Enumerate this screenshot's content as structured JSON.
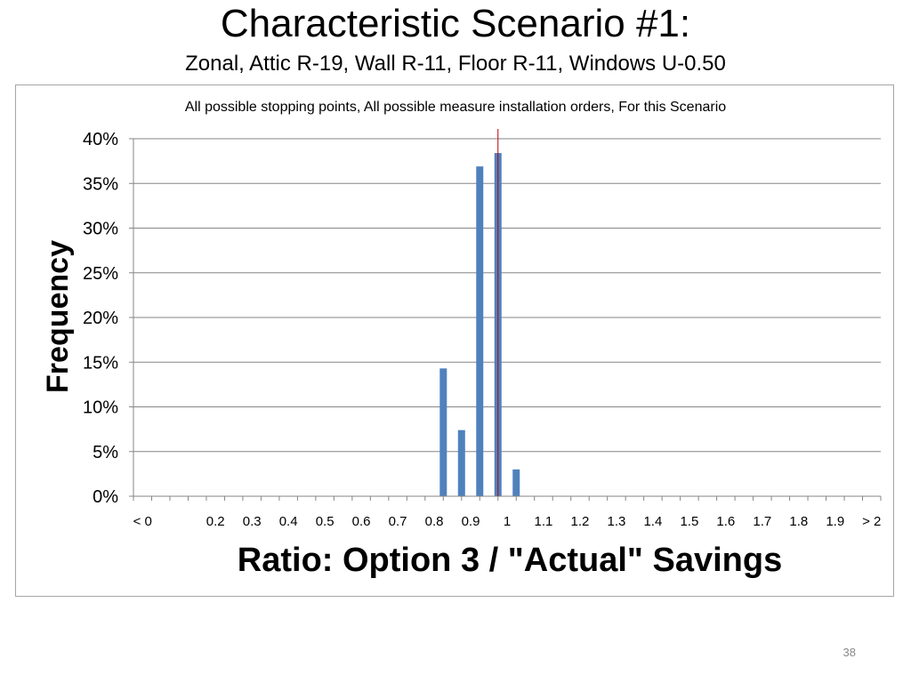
{
  "slide": {
    "title": "Characteristic Scenario #1:",
    "subtitle": "Zonal, Attic R-19, Wall R-11, Floor R-11, Windows U-0.50",
    "page_number": "38"
  },
  "chart_data": {
    "type": "bar",
    "title": "All possible stopping points, All possible measure installation orders, For this Scenario",
    "xlabel": "Ratio: Option 3 / \"Actual\" Savings",
    "ylabel": "Frequency",
    "ylim": [
      0,
      0.4
    ],
    "y_ticks": [
      "0%",
      "5%",
      "10%",
      "15%",
      "20%",
      "25%",
      "30%",
      "35%",
      "40%"
    ],
    "bin_count": 41,
    "x_tick_labels": [
      {
        "bin": 0,
        "label": "< 0"
      },
      {
        "bin": 4,
        "label": "0.2"
      },
      {
        "bin": 6,
        "label": "0.3"
      },
      {
        "bin": 8,
        "label": "0.4"
      },
      {
        "bin": 10,
        "label": "0.5"
      },
      {
        "bin": 12,
        "label": "0.6"
      },
      {
        "bin": 14,
        "label": "0.7"
      },
      {
        "bin": 16,
        "label": "0.8"
      },
      {
        "bin": 18,
        "label": "0.9"
      },
      {
        "bin": 20,
        "label": "1"
      },
      {
        "bin": 22,
        "label": "1.1"
      },
      {
        "bin": 24,
        "label": "1.2"
      },
      {
        "bin": 26,
        "label": "1.3"
      },
      {
        "bin": 28,
        "label": "1.4"
      },
      {
        "bin": 30,
        "label": "1.5"
      },
      {
        "bin": 32,
        "label": "1.6"
      },
      {
        "bin": 34,
        "label": "1.7"
      },
      {
        "bin": 36,
        "label": "1.8"
      },
      {
        "bin": 38,
        "label": "1.9"
      },
      {
        "bin": 40,
        "label": "> 2"
      }
    ],
    "bars": [
      {
        "bin": 16.5,
        "value": 0.143
      },
      {
        "bin": 17.5,
        "value": 0.074
      },
      {
        "bin": 18.5,
        "value": 0.369
      },
      {
        "bin": 19.5,
        "value": 0.384
      },
      {
        "bin": 20.5,
        "value": 0.03
      }
    ],
    "reference_line": {
      "bin": 19.5,
      "value": 1.0
    },
    "grid": true,
    "legend": "none",
    "colors": {
      "bar": "#4f81bd",
      "reference_line": "#c00000",
      "grid": "#868686",
      "axis": "#868686"
    }
  }
}
